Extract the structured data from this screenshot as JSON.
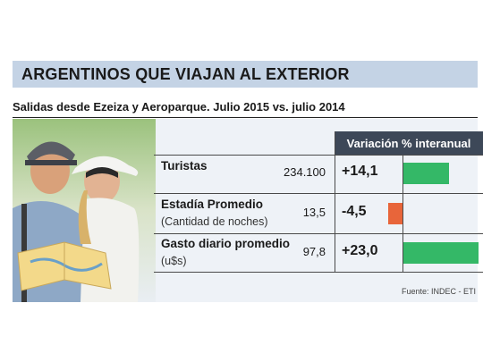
{
  "title": "ARGENTINOS QUE VIAJAN AL EXTERIOR",
  "subtitle": "Salidas desde Ezeiza y Aeroparque. Julio 2015 vs. julio 2014",
  "header": "Variación % interanual",
  "source": "Fuente: INDEC - ETI",
  "colors": {
    "positive": "#34b867",
    "negative": "#e8653a",
    "header_bg": "#3d4858",
    "title_bg": "#c4d3e5"
  },
  "rows": [
    {
      "label": "Turistas",
      "sublabel": "",
      "value": "234.100",
      "variation": "+14,1"
    },
    {
      "label": "Estadía Promedio",
      "sublabel": "(Cantidad de noches)",
      "value": "13,5",
      "variation": "-4,5"
    },
    {
      "label": "Gasto diario promedio",
      "sublabel": "(u$s)",
      "value": "97,8",
      "variation": "+23,0"
    }
  ],
  "chart_data": {
    "type": "bar",
    "categories": [
      "Turistas",
      "Estadía Promedio",
      "Gasto diario promedio"
    ],
    "values": [
      14.1,
      -4.5,
      23.0
    ],
    "title": "Variación % interanual"
  }
}
